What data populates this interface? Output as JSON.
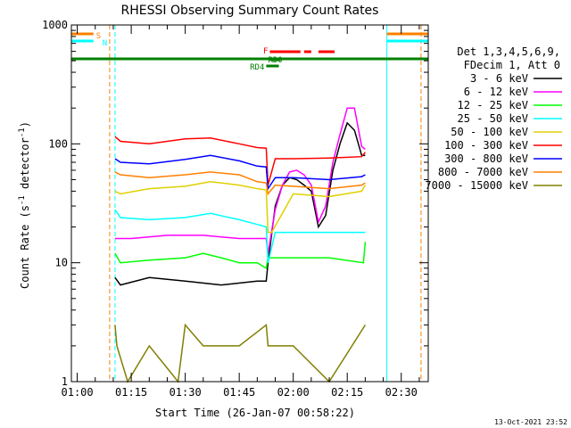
{
  "chart_data": {
    "type": "line",
    "title": "RHESSI Observing Summary Count Rates",
    "xlabel": "Start Time (26-Jan-07 00:58:22)",
    "ylabel_main": "Count Rate (s",
    "ylabel_sup1": "-1",
    "ylabel_mid": " detector",
    "ylabel_sup2": "-1",
    "ylabel_end": ")",
    "yscale": "log",
    "ylim": [
      1,
      1000
    ],
    "xlim_minutes": [
      58.37,
      157.5
    ],
    "y_ticks": [
      {
        "value": 1,
        "label": "1"
      },
      {
        "value": 10,
        "label": "10"
      },
      {
        "value": 100,
        "label": "100"
      },
      {
        "value": 1000,
        "label": "1000"
      }
    ],
    "x_ticks": [
      {
        "value": 60,
        "label": "01:00"
      },
      {
        "value": 75,
        "label": "01:15"
      },
      {
        "value": 90,
        "label": "01:30"
      },
      {
        "value": 105,
        "label": "01:45"
      },
      {
        "value": 120,
        "label": "02:00"
      },
      {
        "value": 135,
        "label": "02:15"
      },
      {
        "value": 150,
        "label": "02:30"
      }
    ],
    "legend_header": [
      "Det 1,3,4,5,6,9,",
      "FDecim 1, Att 0"
    ],
    "legend_position": "right",
    "series": [
      {
        "name": "3 - 6 keV",
        "color": "#000000",
        "x": [
          70.5,
          72,
          80,
          90,
          100,
          110,
          112.5,
          113,
          115,
          117,
          119,
          121,
          123,
          125,
          127,
          129,
          131,
          133,
          135,
          137,
          139,
          140
        ],
        "y": [
          7.5,
          6.5,
          7.5,
          7,
          6.5,
          7,
          7,
          10,
          30,
          45,
          52,
          50,
          45,
          40,
          20,
          25,
          60,
          100,
          150,
          130,
          80,
          80
        ]
      },
      {
        "name": "6 - 12 keV",
        "color": "#ff00ff",
        "x": [
          70.5,
          75,
          85,
          95,
          105,
          110,
          112.5,
          113,
          115,
          117,
          119,
          121,
          123,
          125,
          127,
          129,
          131,
          133,
          135,
          137,
          139,
          140
        ],
        "y": [
          16,
          16,
          17,
          17,
          16,
          16,
          16,
          12,
          28,
          45,
          58,
          60,
          55,
          45,
          22,
          30,
          70,
          120,
          200,
          200,
          95,
          90
        ]
      },
      {
        "name": "12 - 25 keV",
        "color": "#00ff00",
        "x": [
          70.5,
          72,
          80,
          90,
          95,
          100,
          105,
          110,
          112.5,
          113,
          115,
          120,
          130,
          139.5,
          140
        ],
        "y": [
          12,
          10,
          10.5,
          11,
          12,
          11,
          10,
          10,
          9,
          11,
          11,
          11,
          11,
          10,
          15
        ]
      },
      {
        "name": "25 - 50 keV",
        "color": "#00ffff",
        "x": [
          70.5,
          72,
          80,
          90,
          97,
          105,
          110,
          112.5,
          113,
          115,
          120,
          130,
          140
        ],
        "y": [
          28,
          24,
          23,
          24,
          26,
          23,
          21,
          20,
          10,
          18,
          18,
          18,
          18
        ]
      },
      {
        "name": "50 - 100 keV",
        "color": "#e0d000",
        "x": [
          70.5,
          72,
          80,
          90,
          97,
          105,
          110,
          112.5,
          113,
          114,
          120,
          130,
          139,
          140
        ],
        "y": [
          40,
          38,
          42,
          44,
          48,
          45,
          42,
          41,
          18,
          18,
          38,
          36,
          40,
          45
        ]
      },
      {
        "name": "100 - 300 keV",
        "color": "#ff0000",
        "x": [
          70.5,
          72,
          80,
          90,
          97,
          105,
          110,
          112.5,
          113,
          115,
          120,
          130,
          139,
          140
        ],
        "y": [
          115,
          105,
          100,
          110,
          112,
          100,
          93,
          92,
          45,
          75,
          75,
          76,
          78,
          85
        ]
      },
      {
        "name": "300 - 800 keV",
        "color": "#0000ff",
        "x": [
          70.5,
          72,
          80,
          90,
          97,
          105,
          110,
          112.5,
          113,
          115,
          120,
          130,
          139,
          140
        ],
        "y": [
          75,
          70,
          68,
          74,
          80,
          72,
          65,
          64,
          42,
          52,
          52,
          50,
          53,
          55
        ]
      },
      {
        "name": "800 - 7000 keV",
        "color": "#ff8000",
        "x": [
          70.5,
          72,
          80,
          90,
          97,
          105,
          110,
          112.5,
          113,
          115,
          120,
          130,
          139,
          140
        ],
        "y": [
          58,
          55,
          52,
          55,
          58,
          55,
          48,
          47,
          38,
          45,
          44,
          42,
          45,
          47
        ]
      },
      {
        "name": "7000 - 15000 keV",
        "color": "#808000",
        "x": [
          70.5,
          71,
          74,
          80,
          88,
          90,
          95,
          105,
          112.5,
          113,
          120,
          130,
          140
        ],
        "y": [
          3,
          2,
          1,
          2,
          1,
          3,
          2,
          2,
          3,
          2,
          2,
          1,
          3
        ]
      }
    ],
    "flag_bars": [
      {
        "label": "S",
        "color": "#ff8000",
        "segments": [
          [
            58.37,
            64.5
          ],
          [
            146,
            157.5
          ]
        ],
        "level": 1
      },
      {
        "label": "N",
        "color": "#00ffff",
        "segments": [
          [
            58.37,
            64.5
          ],
          [
            146,
            157.5
          ]
        ],
        "level": 2
      },
      {
        "label": "",
        "color": "#008000",
        "segments": [
          [
            58.37,
            157.5
          ]
        ],
        "level": 3
      },
      {
        "label": "F",
        "color": "#ff0000",
        "segments": [
          [
            113.5,
            122
          ],
          [
            123,
            125
          ],
          [
            127,
            131.5
          ]
        ],
        "level": 4
      },
      {
        "label": "RD0",
        "color": "#008000",
        "segments": [
          [
            113.5,
            116.5
          ]
        ],
        "level": 5
      },
      {
        "label": "RD4",
        "color": "#008000",
        "segments": [
          [
            112.5,
            116
          ]
        ],
        "level": 6
      }
    ],
    "vertical_lines": [
      {
        "x": 58.37,
        "color": "#00ffff",
        "style": "solid"
      },
      {
        "x": 69,
        "color": "#ff8000",
        "style": "dashed"
      },
      {
        "x": 70.5,
        "color": "#00ffff",
        "style": "dashed"
      },
      {
        "x": 146,
        "color": "#00ffff",
        "style": "solid"
      },
      {
        "x": 155.5,
        "color": "#ff8000",
        "style": "dashed"
      },
      {
        "x": 157.5,
        "color": "#00ffff",
        "style": "solid"
      }
    ]
  },
  "footer": {
    "date_stamp": "13-Oct-2021 23:52"
  }
}
